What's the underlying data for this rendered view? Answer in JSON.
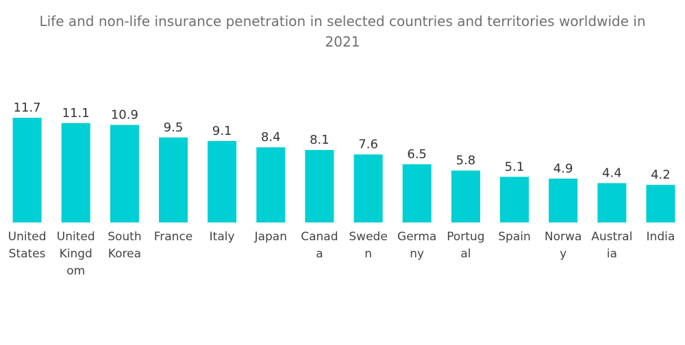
{
  "title_line1": "Life and non-life insurance penetration in selected countries and territories worldwide in",
  "title_line2": "2021",
  "chart_data": {
    "type": "bar",
    "title": "Life and non-life insurance penetration in selected countries and territories worldwide in 2021",
    "categories": [
      "United States",
      "United Kingdom",
      "South Korea",
      "France",
      "Italy",
      "Japan",
      "Canada",
      "Sweden",
      "Germany",
      "Portugal",
      "Spain",
      "Norway",
      "Australia",
      "India"
    ],
    "category_label_lines": [
      [
        "United",
        "States"
      ],
      [
        "United",
        "Kingd",
        "om"
      ],
      [
        "South",
        "Korea"
      ],
      [
        "France"
      ],
      [
        "Italy"
      ],
      [
        "Japan"
      ],
      [
        "Canad",
        "a"
      ],
      [
        "Swede",
        "n"
      ],
      [
        "Germa",
        "ny"
      ],
      [
        "Portug",
        "al"
      ],
      [
        "Spain"
      ],
      [
        "Norwa",
        "y"
      ],
      [
        "Austral",
        "ia"
      ],
      [
        "India"
      ]
    ],
    "values": [
      11.7,
      11.1,
      10.9,
      9.5,
      9.1,
      8.4,
      8.1,
      7.6,
      6.5,
      5.8,
      5.1,
      4.9,
      4.4,
      4.2
    ],
    "value_labels": [
      "11.7",
      "11.1",
      "10.9",
      "9.5",
      "9.1",
      "8.4",
      "8.1",
      "7.6",
      "6.5",
      "5.8",
      "5.1",
      "4.9",
      "4.4",
      "4.2"
    ],
    "xlabel": "",
    "ylabel": "",
    "ylim": [
      0,
      11.7
    ],
    "grid": false,
    "legend": "none",
    "bar_color": "#00cfd3"
  }
}
